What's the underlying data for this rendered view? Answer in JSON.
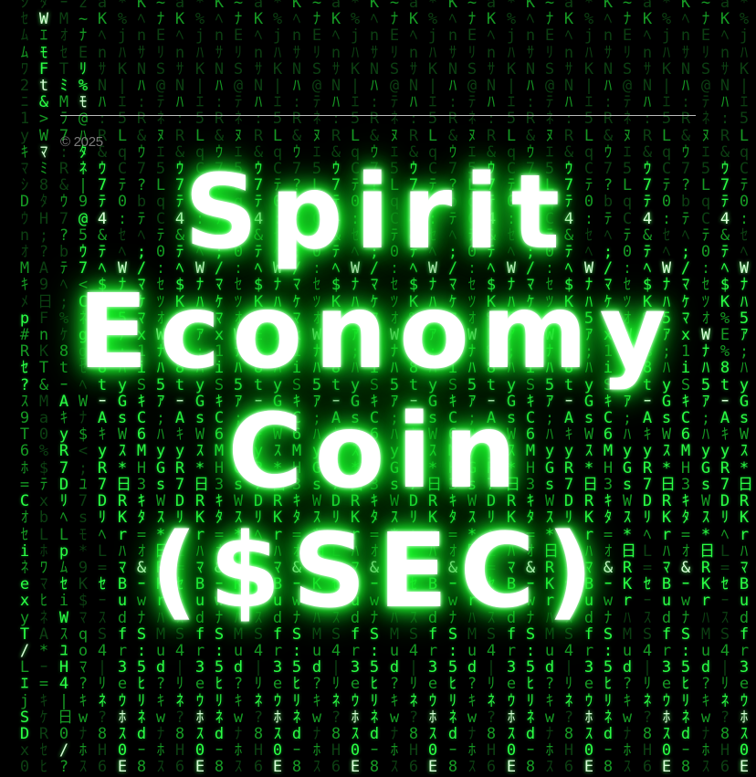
{
  "hero": {
    "title_lines": [
      "Spirit",
      "Economy",
      "Coin",
      "($SEC)"
    ]
  },
  "footer": {
    "copyright": "© 2025"
  },
  "colors": {
    "background": "#000000",
    "rain_green": "#1ddb2e",
    "title_glow": "#22ff33",
    "title_text": "#ffffff",
    "divider": "#cfcfcf",
    "copyright_text": "#7a7a7a"
  }
}
